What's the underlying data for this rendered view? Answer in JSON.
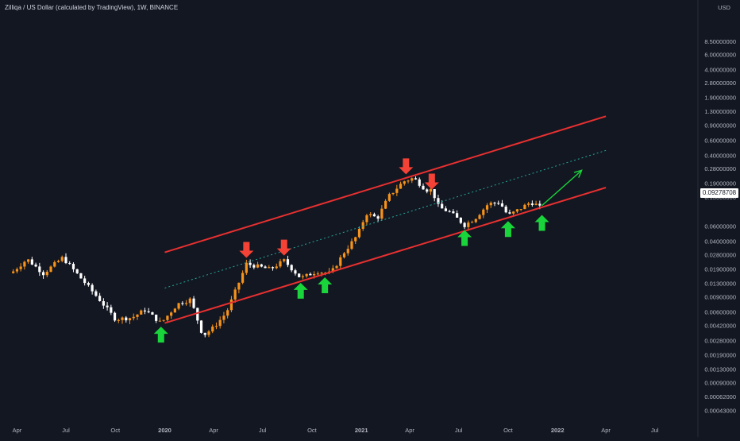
{
  "header": {
    "title": "Zilliqa / US Dollar (calculated by TradingView), 1W, BINANCE"
  },
  "price_axis": {
    "currency": "USD",
    "current_price": "0.09278708"
  },
  "colors": {
    "background": "#131722",
    "candle_up": "#f7931a",
    "candle_down": "#ffffff",
    "channel": "#e83030",
    "midline": "#26a69a",
    "arrow_down": "#f44336",
    "arrow_up": "#19d43a",
    "projection": "#19d43a"
  },
  "chart_data": {
    "type": "candlestick",
    "title": "Zilliqa / US Dollar (calculated by TradingView), 1W, BINANCE",
    "y_scale": "log",
    "y_range": [
      0.00043,
      8.5
    ],
    "y_ticks": [
      "8.50000000",
      "6.00000000",
      "4.00000000",
      "2.80000000",
      "1.90000000",
      "1.30000000",
      "0.90000000",
      "0.60000000",
      "0.40000000",
      "0.28000000",
      "0.19000000",
      "0.13000000",
      "0.09278708",
      "0.06000000",
      "0.04000000",
      "0.02800000",
      "0.01900000",
      "0.01300000",
      "0.00900000",
      "0.00600000",
      "0.00420000",
      "0.00280000",
      "0.00190000",
      "0.00130000",
      "0.00090000",
      "0.00062000",
      "0.00043000"
    ],
    "x_ticks": [
      "Apr",
      "Jul",
      "Oct",
      "2020",
      "Apr",
      "Jul",
      "Oct",
      "2021",
      "Apr",
      "Jul",
      "Oct",
      "2022",
      "Apr",
      "Jul"
    ],
    "x_range": [
      "2019-03",
      "2022-09"
    ],
    "price_path": [
      {
        "d": "2019-03-25",
        "p": 0.018
      },
      {
        "d": "2019-04-20",
        "p": 0.025
      },
      {
        "d": "2019-05-20",
        "p": 0.017
      },
      {
        "d": "2019-06-25",
        "p": 0.026
      },
      {
        "d": "2019-07-25",
        "p": 0.016
      },
      {
        "d": "2019-09-01",
        "p": 0.0085
      },
      {
        "d": "2019-10-01",
        "p": 0.005
      },
      {
        "d": "2019-11-01",
        "p": 0.0052
      },
      {
        "d": "2019-11-25",
        "p": 0.0064
      },
      {
        "d": "2019-12-25",
        "p": 0.0045
      },
      {
        "d": "2020-01-25",
        "p": 0.0075
      },
      {
        "d": "2020-02-18",
        "p": 0.0085
      },
      {
        "d": "2020-03-12",
        "p": 0.0032
      },
      {
        "d": "2020-04-01",
        "p": 0.004
      },
      {
        "d": "2020-04-25",
        "p": 0.006
      },
      {
        "d": "2020-05-15",
        "p": 0.012
      },
      {
        "d": "2020-06-01",
        "p": 0.022
      },
      {
        "d": "2020-06-15",
        "p": 0.021
      },
      {
        "d": "2020-07-15",
        "p": 0.019
      },
      {
        "d": "2020-08-10",
        "p": 0.024
      },
      {
        "d": "2020-09-10",
        "p": 0.015
      },
      {
        "d": "2020-10-10",
        "p": 0.018
      },
      {
        "d": "2020-11-05",
        "p": 0.017
      },
      {
        "d": "2020-11-30",
        "p": 0.03
      },
      {
        "d": "2020-12-25",
        "p": 0.048
      },
      {
        "d": "2021-01-10",
        "p": 0.085
      },
      {
        "d": "2021-01-31",
        "p": 0.075
      },
      {
        "d": "2021-02-21",
        "p": 0.135
      },
      {
        "d": "2021-03-20",
        "p": 0.2
      },
      {
        "d": "2021-04-08",
        "p": 0.22
      },
      {
        "d": "2021-05-01",
        "p": 0.16
      },
      {
        "d": "2021-05-12",
        "p": 0.16
      },
      {
        "d": "2021-05-25",
        "p": 0.1
      },
      {
        "d": "2021-06-15",
        "p": 0.088
      },
      {
        "d": "2021-07-12",
        "p": 0.062
      },
      {
        "d": "2021-08-01",
        "p": 0.075
      },
      {
        "d": "2021-08-25",
        "p": 0.11
      },
      {
        "d": "2021-09-15",
        "p": 0.115
      },
      {
        "d": "2021-10-01",
        "p": 0.08
      },
      {
        "d": "2021-10-25",
        "p": 0.098
      },
      {
        "d": "2021-11-12",
        "p": 0.115
      },
      {
        "d": "2021-11-26",
        "p": 0.105
      },
      {
        "d": "2021-12-03",
        "p": 0.0928
      }
    ],
    "drawings": {
      "channel_upper": [
        {
          "d": "2020-01-01",
          "p": 0.03
        },
        {
          "d": "2022-04-01",
          "p": 1.15
        }
      ],
      "channel_lower": [
        {
          "d": "2020-01-01",
          "p": 0.0045
        },
        {
          "d": "2022-04-01",
          "p": 0.17
        }
      ],
      "channel_mid": [
        {
          "d": "2020-01-01",
          "p": 0.0115
        },
        {
          "d": "2022-04-01",
          "p": 0.46
        }
      ],
      "projection_arrow": [
        {
          "d": "2021-12-03",
          "p": 0.105
        },
        {
          "d": "2022-02-15",
          "p": 0.27
        }
      ],
      "down_arrows": [
        {
          "d": "2020-06-01",
          "p": 0.032
        },
        {
          "d": "2020-08-10",
          "p": 0.034
        },
        {
          "d": "2021-03-25",
          "p": 0.3
        },
        {
          "d": "2021-05-12",
          "p": 0.2
        }
      ],
      "up_arrows": [
        {
          "d": "2019-12-25",
          "p": 0.0033
        },
        {
          "d": "2020-09-10",
          "p": 0.0107
        },
        {
          "d": "2020-10-25",
          "p": 0.0124
        },
        {
          "d": "2021-07-12",
          "p": 0.044
        },
        {
          "d": "2021-10-01",
          "p": 0.056
        },
        {
          "d": "2021-12-03",
          "p": 0.066
        }
      ]
    }
  }
}
